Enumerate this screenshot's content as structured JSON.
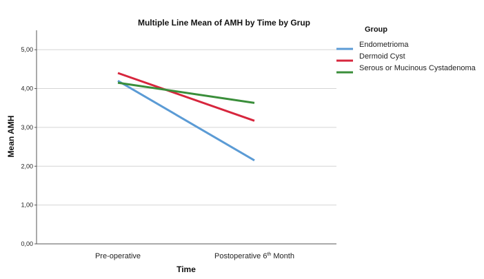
{
  "chart_data": {
    "type": "line",
    "title": "Multiple Line Mean of AMH by Time by Grup",
    "xlabel": "Time",
    "ylabel": "Mean AMH",
    "categories": [
      {
        "text": "Pre-operative",
        "sup": "",
        "after": ""
      },
      {
        "text": "Postoperative 6",
        "sup": "th",
        "after": " Month"
      }
    ],
    "ylim": [
      0,
      5.5
    ],
    "yticks": [
      0,
      1,
      2,
      3,
      4,
      5
    ],
    "ytick_labels": [
      "0,00",
      "1,00",
      "2,00",
      "3,00",
      "4,00",
      "5,00"
    ],
    "grid": true,
    "legend_title": "Group",
    "legend_position": "right",
    "series": [
      {
        "name": "Endometrioma",
        "color": "#5b9bd5",
        "values": [
          4.2,
          2.15
        ]
      },
      {
        "name": "Dermoid Cyst",
        "color": "#d7263d",
        "values": [
          4.4,
          3.17
        ]
      },
      {
        "name": "Serous or Mucinous Cystadenoma",
        "color": "#3a8e3a",
        "values": [
          4.15,
          3.63
        ]
      }
    ]
  }
}
